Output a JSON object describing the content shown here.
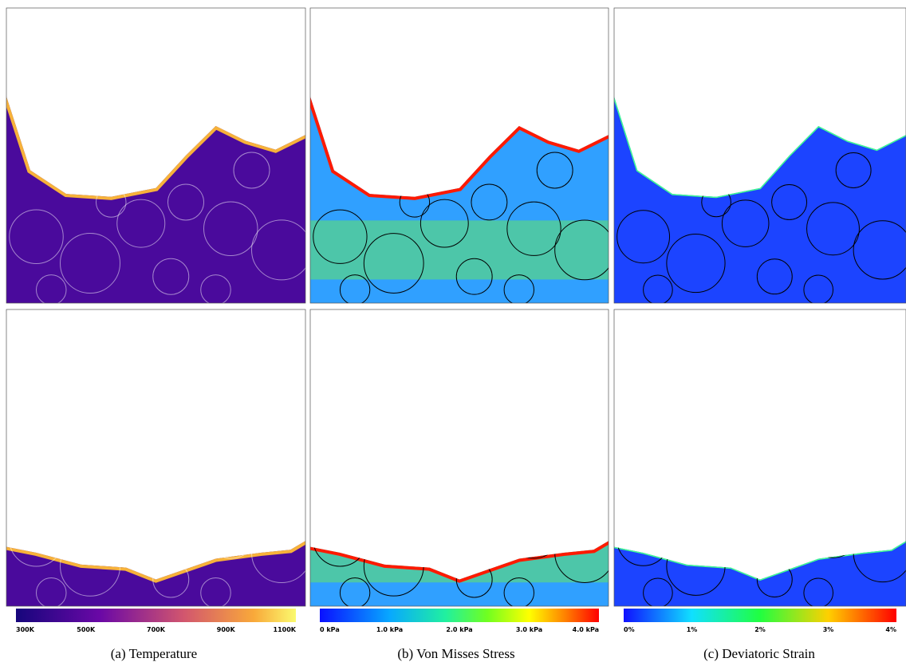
{
  "panels": [
    {
      "caption": "(a) Temperature",
      "colorbar": {
        "ticks": [
          "300K",
          "500K",
          "700K",
          "900K",
          "1100K"
        ]
      }
    },
    {
      "caption": "(b) Von Misses Stress",
      "colorbar": {
        "ticks": [
          "0 kPa",
          "1.0 kPa",
          "2.0 kPa",
          "3.0 kPa",
          "4.0 kPa"
        ]
      }
    },
    {
      "caption": "(c) Deviatoric Strain",
      "colorbar": {
        "ticks": [
          "0%",
          "1%",
          "2%",
          "3%",
          "4%"
        ]
      }
    }
  ]
}
